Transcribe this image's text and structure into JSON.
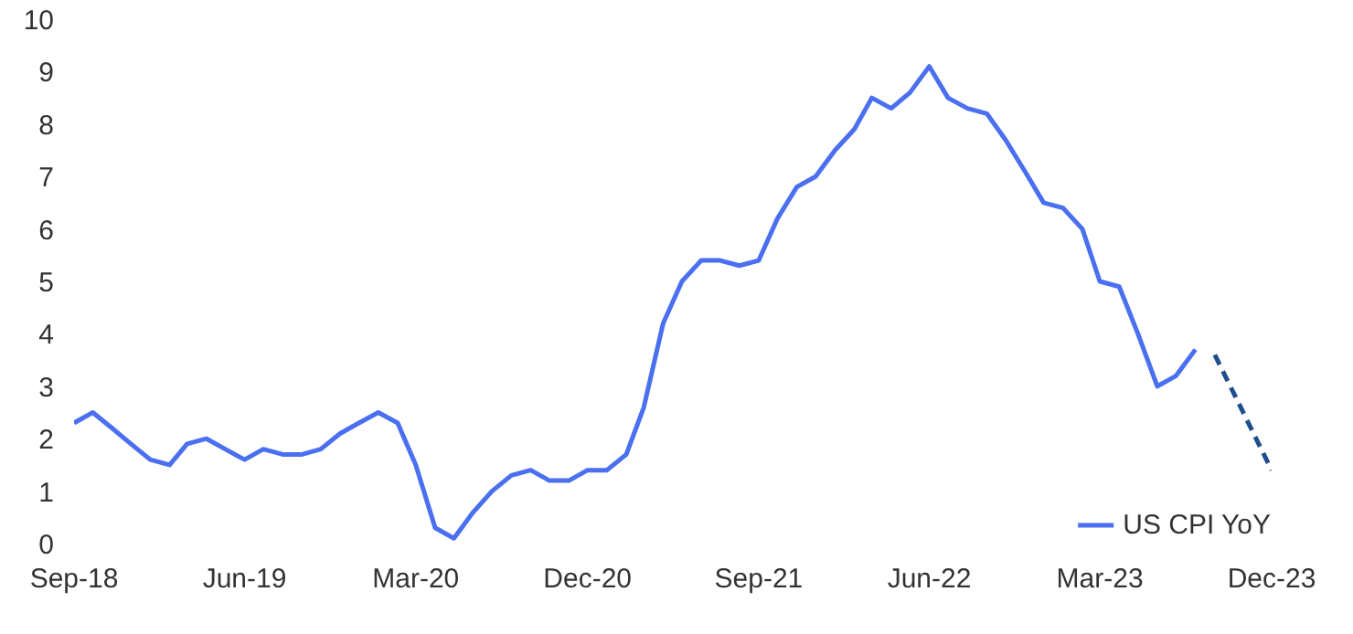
{
  "chart_data": {
    "type": "line",
    "x": [
      "2018-09",
      "2018-10",
      "2018-11",
      "2018-12",
      "2019-01",
      "2019-02",
      "2019-03",
      "2019-04",
      "2019-05",
      "2019-06",
      "2019-07",
      "2019-08",
      "2019-09",
      "2019-10",
      "2019-11",
      "2019-12",
      "2020-01",
      "2020-02",
      "2020-03",
      "2020-04",
      "2020-05",
      "2020-06",
      "2020-07",
      "2020-08",
      "2020-09",
      "2020-10",
      "2020-11",
      "2020-12",
      "2021-01",
      "2021-02",
      "2021-03",
      "2021-04",
      "2021-05",
      "2021-06",
      "2021-07",
      "2021-08",
      "2021-09",
      "2021-10",
      "2021-11",
      "2021-12",
      "2022-01",
      "2022-02",
      "2022-03",
      "2022-04",
      "2022-05",
      "2022-06",
      "2022-07",
      "2022-08",
      "2022-09",
      "2022-10",
      "2022-11",
      "2022-12",
      "2023-01",
      "2023-02",
      "2023-03",
      "2023-04",
      "2023-05",
      "2023-06",
      "2023-07",
      "2023-08"
    ],
    "series": [
      {
        "name": "US CPI YoY",
        "color": "#4a6ff0",
        "line_style": "solid",
        "values": [
          2.3,
          2.5,
          2.2,
          1.9,
          1.6,
          1.5,
          1.9,
          2.0,
          1.8,
          1.6,
          1.8,
          1.7,
          1.7,
          1.8,
          2.1,
          2.3,
          2.5,
          2.3,
          1.5,
          0.3,
          0.1,
          0.6,
          1.0,
          1.3,
          1.4,
          1.2,
          1.2,
          1.4,
          1.4,
          1.7,
          2.6,
          4.2,
          5.0,
          5.4,
          5.4,
          5.3,
          5.4,
          6.2,
          6.8,
          7.0,
          7.5,
          7.9,
          8.5,
          8.3,
          8.6,
          9.1,
          8.5,
          8.3,
          8.2,
          7.7,
          7.1,
          6.5,
          6.4,
          6.0,
          5.0,
          4.9,
          4.0,
          3.0,
          3.2,
          3.7
        ]
      },
      {
        "color": "#1f4e8c",
        "line_style": "dashed",
        "x": [
          "2023-09",
          "2023-12"
        ],
        "values": [
          3.6,
          1.4
        ]
      }
    ],
    "xlim": [
      "2018-09",
      "2023-12"
    ],
    "xticks": [
      {
        "value": "2018-09",
        "label": "Sep-18"
      },
      {
        "value": "2019-06",
        "label": "Jun-19"
      },
      {
        "value": "2020-03",
        "label": "Mar-20"
      },
      {
        "value": "2020-12",
        "label": "Dec-20"
      },
      {
        "value": "2021-09",
        "label": "Sep-21"
      },
      {
        "value": "2022-06",
        "label": "Jun-22"
      },
      {
        "value": "2023-03",
        "label": "Mar-23"
      },
      {
        "value": "2023-12",
        "label": "Dec-23"
      }
    ],
    "ylim": [
      0,
      10
    ],
    "yticks": [
      0,
      1,
      2,
      3,
      4,
      5,
      6,
      7,
      8,
      9,
      10
    ],
    "grid": false,
    "legend": "bottom right"
  }
}
